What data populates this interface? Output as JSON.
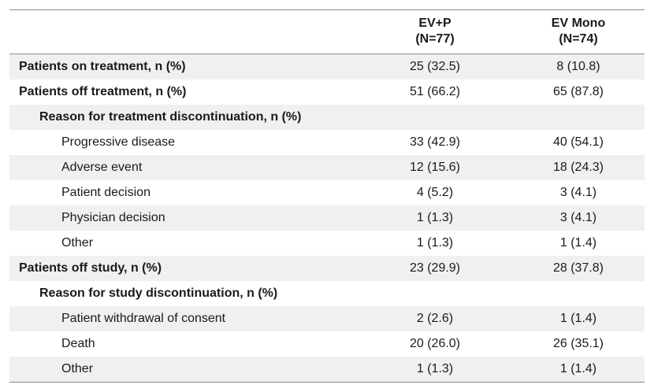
{
  "table": {
    "columns": [
      {
        "name": "EV+P",
        "n": "(N=77)"
      },
      {
        "name": "EV Mono",
        "n": "(N=74)"
      }
    ],
    "sections": [
      {
        "label": "Patients on treatment, n (%)",
        "values": [
          "25 (32.5)",
          "8 (10.8)"
        ]
      },
      {
        "label": "Patients off treatment, n (%)",
        "values": [
          "51 (66.2)",
          "65 (87.8)"
        ],
        "reason": {
          "label": "Reason for treatment discontinuation, n (%)",
          "rows": [
            {
              "label": "Progressive disease",
              "values": [
                "33 (42.9)",
                "40 (54.1)"
              ]
            },
            {
              "label": "Adverse event",
              "values": [
                "12 (15.6)",
                "18 (24.3)"
              ]
            },
            {
              "label": "Patient decision",
              "values": [
                "4 (5.2)",
                "3 (4.1)"
              ]
            },
            {
              "label": "Physician decision",
              "values": [
                "1 (1.3)",
                "3 (4.1)"
              ]
            },
            {
              "label": "Other",
              "values": [
                "1 (1.3)",
                "1 (1.4)"
              ]
            }
          ]
        }
      },
      {
        "label": "Patients off study, n (%)",
        "values": [
          "23 (29.9)",
          "28 (37.8)"
        ],
        "reason": {
          "label": "Reason for study discontinuation, n (%)",
          "rows": [
            {
              "label": "Patient withdrawal of consent",
              "values": [
                "2 (2.6)",
                "1 (1.4)"
              ]
            },
            {
              "label": "Death",
              "values": [
                "20 (26.0)",
                "26 (35.1)"
              ]
            },
            {
              "label": "Other",
              "values": [
                "1 (1.3)",
                "1 (1.4)"
              ]
            }
          ]
        }
      }
    ]
  }
}
